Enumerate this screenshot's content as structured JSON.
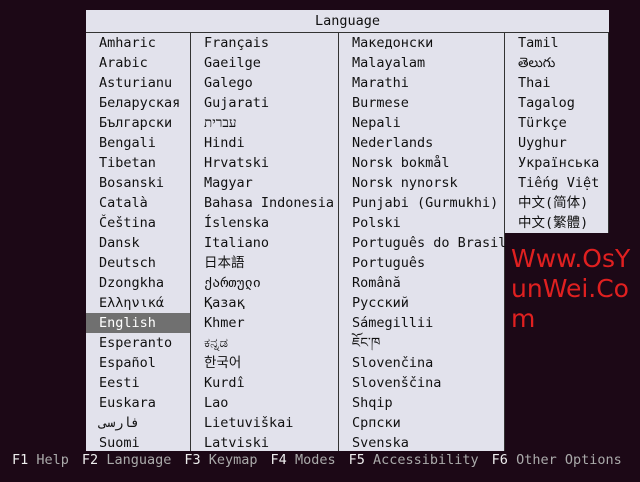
{
  "title": "Language",
  "columns": [
    [
      "Amharic",
      "Arabic",
      "Asturianu",
      "Беларуская",
      "Български",
      "Bengali",
      "Tibetan",
      "Bosanski",
      "Català",
      "Čeština",
      "Dansk",
      "Deutsch",
      "Dzongkha",
      "Ελληνικά",
      "English",
      "Esperanto",
      "Español",
      "Eesti",
      "Euskara",
      "فارسی",
      "Suomi"
    ],
    [
      "Français",
      "Gaeilge",
      "Galego",
      "Gujarati",
      "עברית",
      "Hindi",
      "Hrvatski",
      "Magyar",
      "Bahasa Indonesia",
      "Íslenska",
      "Italiano",
      "日本語",
      "ქართული",
      "Қазақ",
      "Khmer",
      "ಕನ್ನಡ",
      "한국어",
      "Kurdî",
      "Lao",
      "Lietuviškai",
      "Latviski"
    ],
    [
      "Македонски",
      "Malayalam",
      "Marathi",
      "Burmese",
      "Nepali",
      "Nederlands",
      "Norsk bokmål",
      "Norsk nynorsk",
      "Punjabi (Gurmukhi)",
      "Polski",
      "Português do Brasil",
      "Português",
      "Română",
      "Русский",
      "Sámegillii",
      "ཇོང་ཁ",
      "Slovenčina",
      "Slovenščina",
      "Shqip",
      "Српски",
      "Svenska"
    ],
    [
      "Tamil",
      "తెలుగు",
      "Thai",
      "Tagalog",
      "Türkçe",
      "Uyghur",
      "Українська",
      "Tiếng Việt",
      "中文(简体)",
      "中文(繁體)"
    ]
  ],
  "selected": "English",
  "footer": [
    {
      "key": "F1",
      "label": "Help"
    },
    {
      "key": "F2",
      "label": "Language"
    },
    {
      "key": "F3",
      "label": "Keymap"
    },
    {
      "key": "F4",
      "label": "Modes"
    },
    {
      "key": "F5",
      "label": "Accessibility"
    },
    {
      "key": "F6",
      "label": "Other Options"
    }
  ],
  "watermark": "Www.OsYunWei.Com",
  "colors": {
    "background": "#1c0816",
    "panel": "#e2e2ec",
    "selection": "#707070",
    "watermark": "#e02020"
  }
}
